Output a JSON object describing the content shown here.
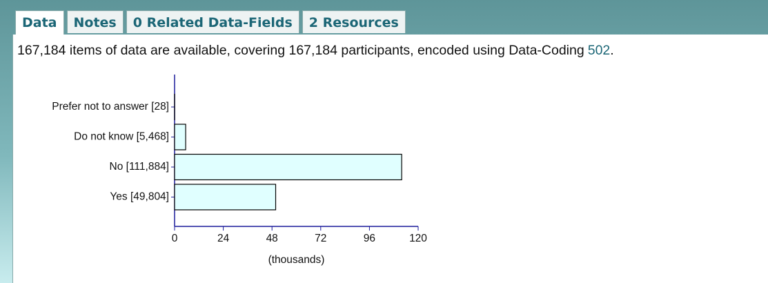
{
  "tabs": [
    "Data",
    "Notes",
    "0 Related Data-Fields",
    "2 Resources"
  ],
  "description": {
    "text": "167,184 items of data are available, covering 167,184 participants, encoded using Data-Coding",
    "link": "502",
    "end": "."
  },
  "chart_data": {
    "type": "hbar",
    "categories": [
      "Prefer not to answer [28]",
      "Do not know [5,468]",
      "No [111,884]",
      "Yes [49,804]"
    ],
    "values": [
      0.028,
      5.468,
      111.884,
      49.804
    ],
    "color": "#e0ffff",
    "xlim": [
      0,
      120
    ],
    "xticks": [
      0,
      24,
      48,
      72,
      96,
      120
    ],
    "x_label": "(thousands)"
  }
}
